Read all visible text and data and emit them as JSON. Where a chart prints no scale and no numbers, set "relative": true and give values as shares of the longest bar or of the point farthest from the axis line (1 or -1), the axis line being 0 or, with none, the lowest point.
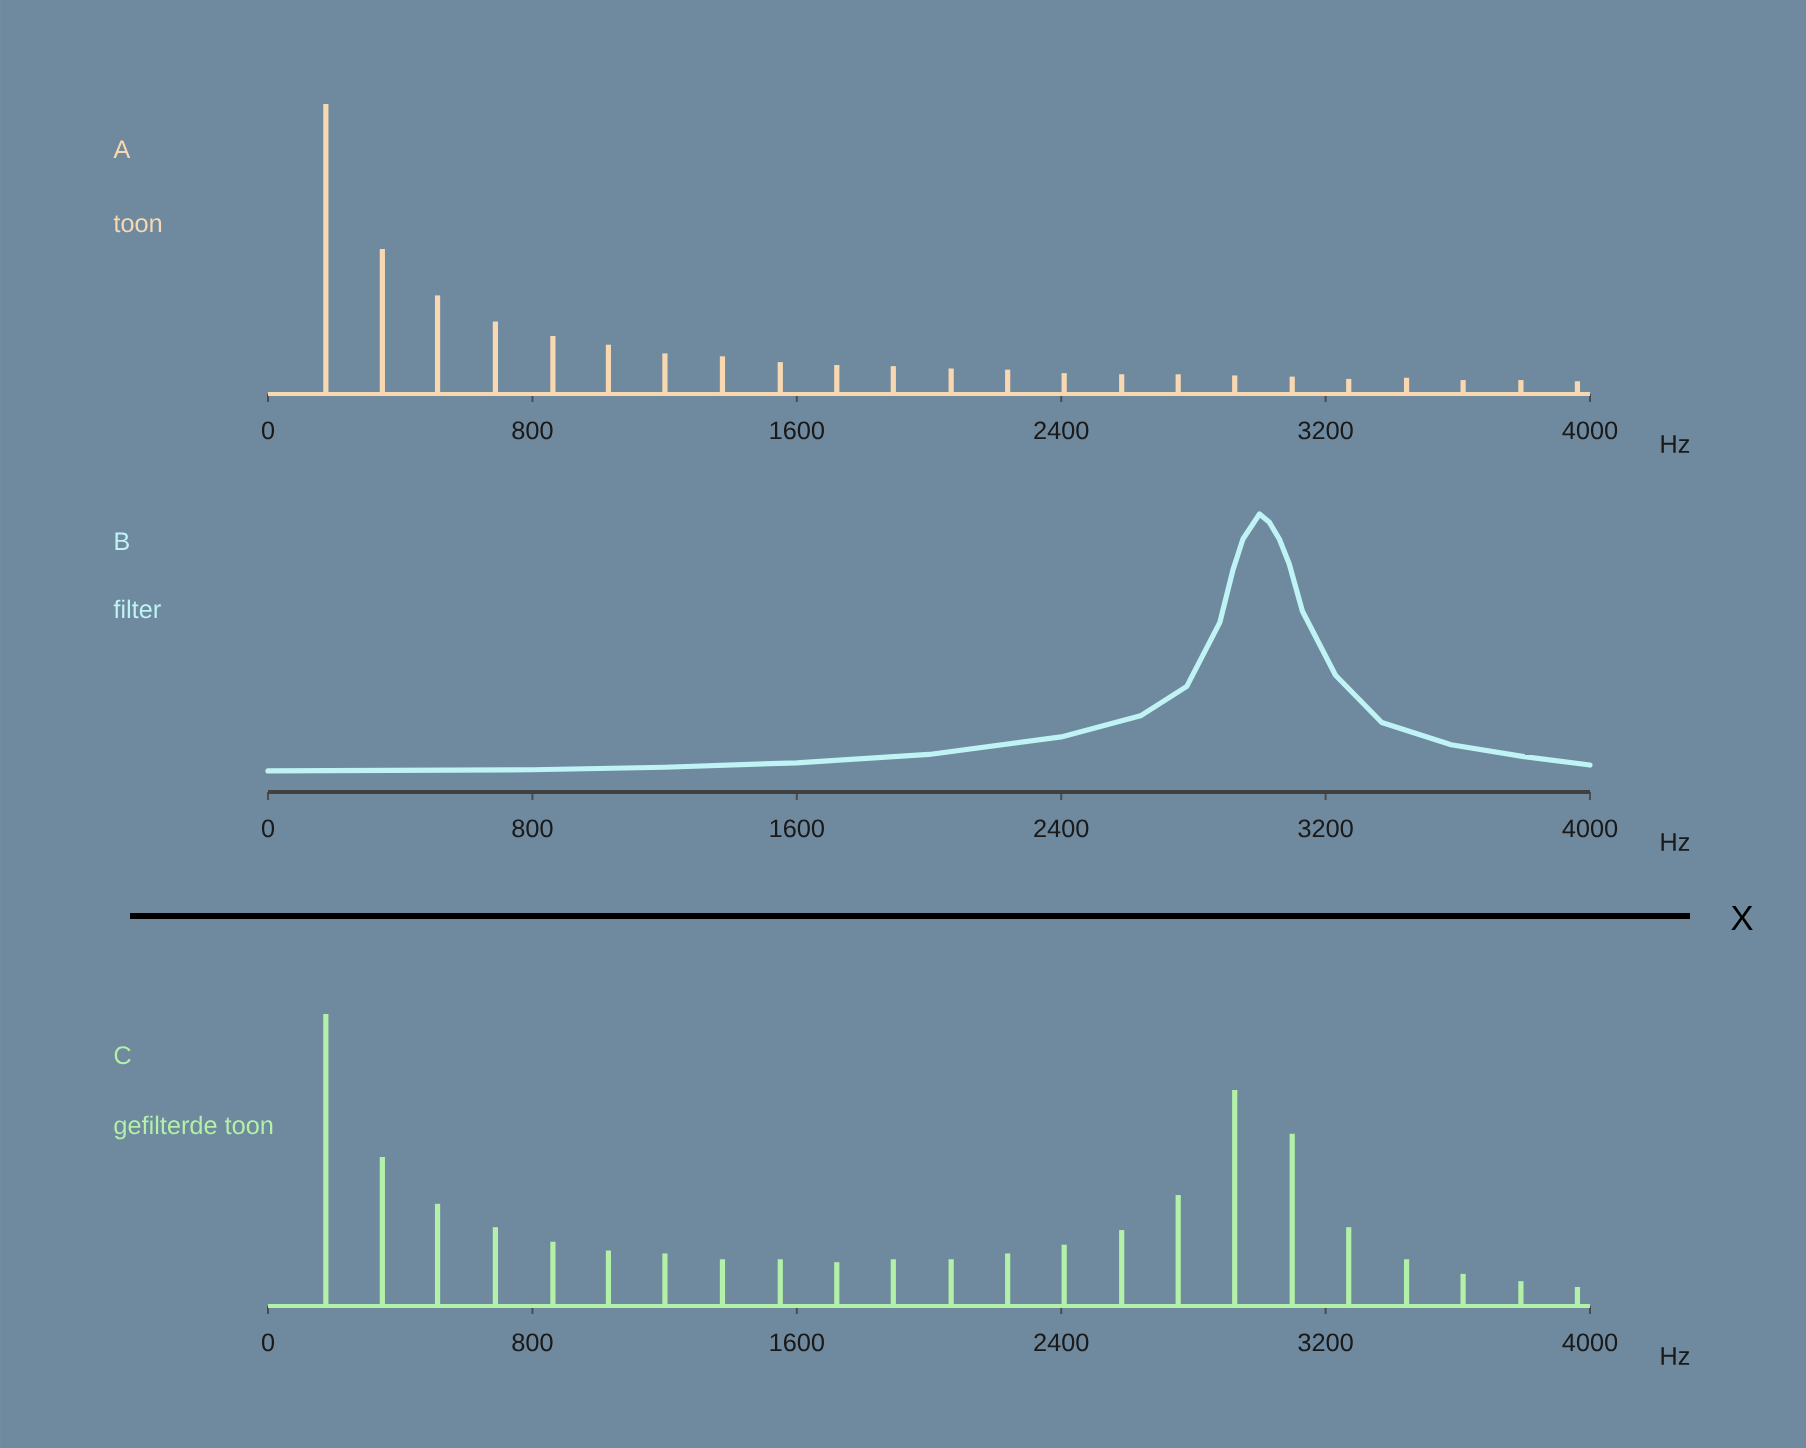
{
  "chart_data": [
    {
      "type": "bar",
      "title": "A",
      "subtitle": "toon",
      "xlabel": "Hz",
      "relative": true,
      "color": "#f7d8b0",
      "xlim": [
        0,
        4000
      ],
      "xticks": [
        0,
        800,
        1600,
        2400,
        3200,
        4000
      ],
      "x": [
        175,
        346,
        513,
        688,
        862,
        1030,
        1201,
        1375,
        1550,
        1721,
        1892,
        2067,
        2238,
        2409,
        2583,
        2754,
        2925,
        3099,
        3270,
        3445,
        3616,
        3791,
        3962
      ],
      "values": [
        1,
        0.5,
        0.34,
        0.25,
        0.2,
        0.17,
        0.14,
        0.13,
        0.11,
        0.1,
        0.096,
        0.088,
        0.084,
        0.072,
        0.068,
        0.068,
        0.064,
        0.06,
        0.052,
        0.056,
        0.048,
        0.048,
        0.044
      ]
    },
    {
      "type": "line",
      "title": "B",
      "subtitle": "filter",
      "xlabel": "Hz",
      "relative": true,
      "color": "#bff3f6",
      "xlim": [
        0,
        4000
      ],
      "xticks": [
        0,
        800,
        1600,
        2400,
        3200,
        4000
      ],
      "annotations": [
        "X"
      ],
      "x": [
        0,
        400,
        800,
        1200,
        1600,
        2000,
        2400,
        2640,
        2780,
        2880,
        2920,
        2950,
        3000,
        3030,
        3060,
        3090,
        3130,
        3230,
        3370,
        3580,
        3800,
        4000
      ],
      "values": [
        0.076,
        0.078,
        0.08,
        0.089,
        0.105,
        0.135,
        0.198,
        0.274,
        0.38,
        0.61,
        0.8,
        0.91,
        1,
        0.97,
        0.91,
        0.82,
        0.65,
        0.42,
        0.25,
        0.17,
        0.127,
        0.097
      ]
    },
    {
      "type": "bar",
      "title": "C",
      "subtitle": "gefilterde toon",
      "xlabel": "Hz",
      "relative": true,
      "color": "#b3f0a8",
      "xlim": [
        0,
        4000
      ],
      "xticks": [
        0,
        800,
        1600,
        2400,
        3200,
        4000
      ],
      "x": [
        175,
        346,
        513,
        688,
        862,
        1030,
        1201,
        1375,
        1550,
        1721,
        1892,
        2067,
        2238,
        2409,
        2583,
        2754,
        2925,
        3099,
        3270,
        3445,
        3616,
        3791,
        3962
      ],
      "values": [
        1,
        0.51,
        0.35,
        0.27,
        0.22,
        0.19,
        0.18,
        0.16,
        0.16,
        0.15,
        0.16,
        0.16,
        0.18,
        0.21,
        0.26,
        0.38,
        0.74,
        0.59,
        0.27,
        0.16,
        0.11,
        0.085,
        0.065
      ]
    }
  ]
}
